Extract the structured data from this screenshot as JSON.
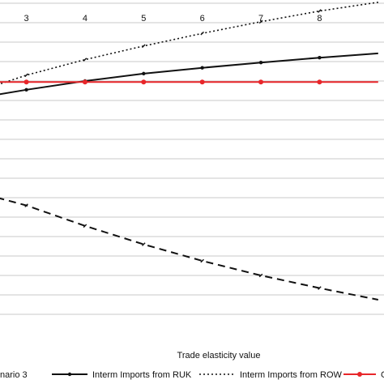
{
  "chart_data": {
    "type": "line",
    "xlabel": "Trade elasticity value",
    "x_ticks": [
      3,
      4,
      5,
      6,
      7,
      8
    ],
    "x": [
      2.5,
      3,
      4,
      5,
      6,
      7,
      8,
      9
    ],
    "xlim": [
      2.55,
      9.1
    ],
    "ylim": [
      0,
      17
    ],
    "grid": true,
    "legend_position": "bottom",
    "series": [
      {
        "name": "Interm Imports from RUK",
        "style": "solid",
        "color": "#111111",
        "values": [
          12.3,
          12.55,
          13.0,
          13.38,
          13.68,
          13.95,
          14.2,
          14.42
        ]
      },
      {
        "name": "Interm Imports from ROW",
        "style": "dotted",
        "color": "#111111",
        "values": [
          12.8,
          13.3,
          14.1,
          14.8,
          15.45,
          16.05,
          16.6,
          17.05
        ]
      },
      {
        "name": "GDP",
        "style": "solid",
        "color": "#e8262a",
        "values": [
          12.95,
          12.95,
          12.95,
          12.95,
          12.95,
          12.95,
          12.95,
          12.95
        ]
      },
      {
        "name": "",
        "style": "dashed",
        "color": "#111111",
        "values": [
          7.0,
          6.6,
          5.55,
          4.6,
          3.75,
          3.0,
          2.35,
          1.75
        ]
      }
    ],
    "legend": [
      {
        "label": "nario 3",
        "style": "none",
        "color": "#111111"
      },
      {
        "label": "Interm Imports from RUK",
        "style": "solid",
        "color": "#111111"
      },
      {
        "label": "Interm Imports from ROW",
        "style": "dotted",
        "color": "#111111"
      },
      {
        "label": "GDF",
        "style": "solid",
        "color": "#e8262a"
      }
    ]
  }
}
